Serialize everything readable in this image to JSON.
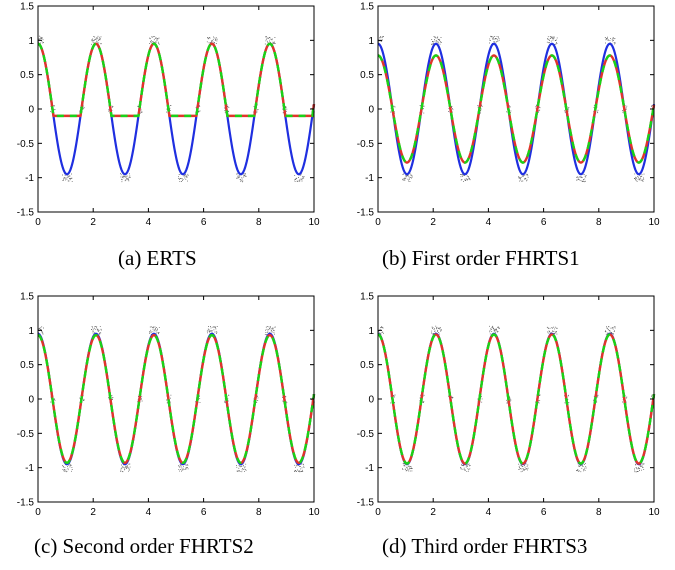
{
  "colors": {
    "true_signal": "#1f2fe0",
    "estimate_red": "#e0352a",
    "estimate_green": "#17d417",
    "measurements": "#333333"
  },
  "chart_data": [
    {
      "type": "line",
      "caption": "(a) ERTS",
      "xlim": [
        0,
        10
      ],
      "ylim": [
        -1.5,
        1.5
      ],
      "x_ticks": [
        "0",
        "2",
        "4",
        "6",
        "8",
        "10"
      ],
      "y_ticks": [
        "1.5",
        "1",
        "0.5",
        "0",
        "-0.5",
        "-1",
        "-1.5"
      ],
      "grid": false,
      "true_signal": {
        "amplitude": 0.95,
        "period": 2.1,
        "phase": 0.35
      },
      "estimate_red": {
        "amplitude": 0.95,
        "period": 2.1,
        "phase": 0.35,
        "floor": -0.1
      },
      "estimate_green": {
        "amplitude": 0.95,
        "period": 2.1,
        "phase": 0.35,
        "floor": -0.1
      },
      "measurement_levels": [
        -1,
        0,
        1
      ]
    },
    {
      "type": "line",
      "caption": "(b) First order FHRTS1",
      "xlim": [
        0,
        10
      ],
      "ylim": [
        -1.5,
        1.5
      ],
      "x_ticks": [
        "0",
        "2",
        "4",
        "6",
        "8",
        "10"
      ],
      "y_ticks": [
        "1.5",
        "1",
        "0.5",
        "0",
        "-0.5",
        "-1",
        "-1.5"
      ],
      "grid": false,
      "true_signal": {
        "amplitude": 0.95,
        "period": 2.1,
        "phase": 0.35
      },
      "estimate_red": {
        "amplitude": 0.78,
        "period": 2.1,
        "phase": 0.35
      },
      "estimate_green": {
        "amplitude": 0.78,
        "period": 2.1,
        "phase": 0.35
      },
      "measurement_levels": [
        -1,
        0,
        1
      ]
    },
    {
      "type": "line",
      "caption": "(c) Second order FHRTS2",
      "xlim": [
        0,
        10
      ],
      "ylim": [
        -1.5,
        1.5
      ],
      "x_ticks": [
        "0",
        "2",
        "4",
        "6",
        "8",
        "10"
      ],
      "y_ticks": [
        "1.5",
        "1",
        "0.5",
        "0",
        "-0.5",
        "-1",
        "-1.5"
      ],
      "grid": false,
      "true_signal": {
        "amplitude": 0.95,
        "period": 2.1,
        "phase": 0.35
      },
      "estimate_red": {
        "amplitude": 0.93,
        "period": 2.1,
        "phase": 0.35
      },
      "estimate_green": {
        "amplitude": 0.93,
        "period": 2.1,
        "phase": 0.35
      },
      "measurement_levels": [
        -1,
        0,
        1
      ]
    },
    {
      "type": "line",
      "caption": "(d) Third order FHRTS3",
      "xlim": [
        0,
        10
      ],
      "ylim": [
        -1.5,
        1.5
      ],
      "x_ticks": [
        "0",
        "2",
        "4",
        "6",
        "8",
        "10"
      ],
      "y_ticks": [
        "1.5",
        "1",
        "0.5",
        "0",
        "-0.5",
        "-1",
        "-1.5"
      ],
      "grid": false,
      "true_signal": {
        "amplitude": 0.95,
        "period": 2.1,
        "phase": 0.35
      },
      "estimate_red": {
        "amplitude": 0.94,
        "period": 2.1,
        "phase": 0.35
      },
      "estimate_green": {
        "amplitude": 0.94,
        "period": 2.1,
        "phase": 0.35
      },
      "measurement_levels": [
        -1,
        0,
        1
      ]
    }
  ]
}
